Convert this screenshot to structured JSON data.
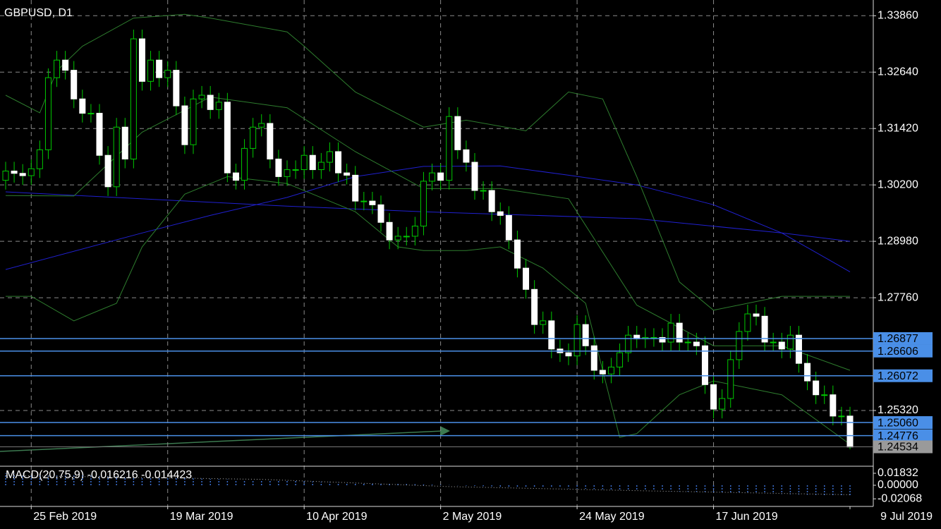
{
  "chart_data": {
    "type": "candlestick",
    "title": "GBPUSD, D1",
    "categories": [
      null,
      null,
      null,
      "25 Feb 2019",
      null,
      null,
      null,
      null,
      null,
      null,
      null,
      null,
      null,
      null,
      null,
      null,
      null,
      null,
      null,
      "19 Mar 2019",
      null,
      null,
      null,
      null,
      null,
      null,
      null,
      null,
      null,
      null,
      null,
      null,
      null,
      null,
      null,
      "10 Apr 2019",
      null,
      null,
      null,
      null,
      null,
      null,
      null,
      null,
      null,
      null,
      null,
      null,
      null,
      null,
      null,
      "2 May 2019",
      null,
      null,
      null,
      null,
      null,
      null,
      null,
      null,
      null,
      null,
      null,
      null,
      null,
      null,
      null,
      "24 May 2019",
      null,
      null,
      null,
      null,
      null,
      null,
      null,
      null,
      null,
      null,
      null,
      null,
      null,
      null,
      null,
      "17 Jun 2019",
      null,
      null,
      null,
      null,
      null,
      null,
      null,
      null,
      null,
      null,
      null,
      null,
      null,
      null,
      null,
      "9 Jul 2019"
    ],
    "open": [
      1.303,
      1.305,
      1.3045,
      1.304,
      1.3055,
      1.3096,
      1.3252,
      1.329,
      1.3268,
      1.3206,
      1.3175,
      1.3175,
      1.3084,
      1.3016,
      1.3145,
      1.3076,
      1.3336,
      1.3244,
      1.329,
      1.3252,
      1.3268,
      1.3191,
      1.3107,
      1.3206,
      1.3214,
      1.3183,
      1.3199,
      1.3046,
      1.303,
      1.3099,
      1.3145,
      1.3153,
      1.3076,
      1.3038,
      1.3053,
      1.3053,
      1.3084,
      1.3053,
      1.3069,
      1.3092,
      1.3046,
      1.3041,
      1.2985,
      1.2985,
      1.2977,
      1.2939,
      1.2901,
      1.2909,
      1.2909,
      1.2931,
      1.3028,
      1.3046,
      1.303,
      1.3168,
      1.3096,
      1.3069,
      1.3008,
      1.3008,
      1.2962,
      1.2954,
      1.2901,
      1.284,
      1.2794,
      1.2718,
      1.2726,
      1.2665,
      1.2657,
      1.265,
      1.2718,
      1.2672,
      1.2619,
      1.2611,
      1.2626,
      1.2657,
      1.2695,
      1.2687,
      1.269,
      1.269,
      1.268,
      1.2721,
      1.268,
      1.268,
      1.2672,
      1.2588,
      1.2535,
      1.2558,
      1.2642,
      1.2703,
      1.2741,
      1.2736,
      1.268,
      1.268,
      1.2665,
      1.2695,
      1.2634,
      1.2596,
      1.2566,
      1.2566,
      1.252,
      1.252
    ],
    "high": [
      1.307,
      1.307,
      1.3065,
      1.3075,
      1.3116,
      1.3272,
      1.331,
      1.331,
      1.3288,
      1.3226,
      1.3195,
      1.3195,
      1.3104,
      1.3165,
      1.3165,
      1.3356,
      1.3356,
      1.331,
      1.331,
      1.3288,
      1.3288,
      1.3211,
      1.3226,
      1.3234,
      1.3234,
      1.3219,
      1.3219,
      1.3066,
      1.3119,
      1.3165,
      1.3173,
      1.3173,
      1.3096,
      1.3073,
      1.3073,
      1.3104,
      1.3104,
      1.3089,
      1.3112,
      1.3112,
      1.3066,
      1.3061,
      1.3005,
      1.3005,
      1.2997,
      1.2959,
      1.2929,
      1.2929,
      1.2951,
      1.3048,
      1.3066,
      1.3066,
      1.3188,
      1.3188,
      1.3116,
      1.3089,
      1.3028,
      1.3028,
      1.2982,
      1.2974,
      1.2921,
      1.286,
      1.2814,
      1.2746,
      1.2746,
      1.2685,
      1.2677,
      1.2738,
      1.2738,
      1.2692,
      1.2639,
      1.2646,
      1.2677,
      1.2715,
      1.2715,
      1.271,
      1.271,
      1.271,
      1.2741,
      1.2741,
      1.27,
      1.27,
      1.2692,
      1.2608,
      1.2578,
      1.2662,
      1.2723,
      1.2761,
      1.2761,
      1.2756,
      1.27,
      1.27,
      1.2715,
      1.2715,
      1.2654,
      1.2616,
      1.2586,
      1.2586,
      1.254,
      1.254
    ],
    "low": [
      1.301,
      1.3025,
      1.302,
      1.302,
      1.3035,
      1.3076,
      1.3232,
      1.3248,
      1.3186,
      1.3155,
      1.3155,
      1.3064,
      1.2996,
      1.2996,
      1.3056,
      1.3056,
      1.3224,
      1.3224,
      1.3232,
      1.3232,
      1.3171,
      1.3087,
      1.3087,
      1.3186,
      1.3163,
      1.3163,
      1.3026,
      1.301,
      1.301,
      1.3079,
      1.3125,
      1.3056,
      1.3018,
      1.3018,
      1.3033,
      1.3033,
      1.3033,
      1.3033,
      1.3049,
      1.3026,
      1.3021,
      1.2965,
      1.2965,
      1.2957,
      1.2919,
      1.2881,
      1.2881,
      1.2889,
      1.2889,
      1.2911,
      1.3008,
      1.301,
      1.301,
      1.3076,
      1.3049,
      1.2988,
      1.2988,
      1.2942,
      1.2934,
      1.2881,
      1.282,
      1.2774,
      1.2698,
      1.2698,
      1.2645,
      1.2637,
      1.263,
      1.263,
      1.2652,
      1.2599,
      1.2591,
      1.2591,
      1.2606,
      1.2637,
      1.2667,
      1.2667,
      1.267,
      1.266,
      1.266,
      1.266,
      1.266,
      1.2652,
      1.2568,
      1.2515,
      1.2515,
      1.2538,
      1.2622,
      1.2683,
      1.2716,
      1.266,
      1.266,
      1.2645,
      1.2645,
      1.2614,
      1.2576,
      1.2546,
      1.2546,
      1.25,
      1.25,
      1.2448
    ],
    "close": [
      1.305,
      1.3045,
      1.304,
      1.3055,
      1.3096,
      1.3252,
      1.329,
      1.3268,
      1.3206,
      1.3175,
      1.3175,
      1.3084,
      1.3016,
      1.3145,
      1.3076,
      1.3336,
      1.3244,
      1.329,
      1.3252,
      1.3268,
      1.3191,
      1.3107,
      1.3206,
      1.3214,
      1.3183,
      1.3199,
      1.3046,
      1.303,
      1.3099,
      1.3145,
      1.3153,
      1.3076,
      1.3038,
      1.3053,
      1.3053,
      1.3084,
      1.3053,
      1.3069,
      1.3092,
      1.3046,
      1.3041,
      1.2985,
      1.2985,
      1.2977,
      1.2939,
      1.2901,
      1.2909,
      1.2909,
      1.2931,
      1.3028,
      1.3046,
      1.303,
      1.3168,
      1.3096,
      1.3069,
      1.3008,
      1.3008,
      1.2962,
      1.2954,
      1.2901,
      1.284,
      1.2794,
      1.2718,
      1.2726,
      1.2665,
      1.2657,
      1.265,
      1.2718,
      1.2672,
      1.2619,
      1.2611,
      1.2626,
      1.2657,
      1.2695,
      1.2687,
      1.269,
      1.269,
      1.268,
      1.2721,
      1.268,
      1.268,
      1.2672,
      1.2588,
      1.2535,
      1.2558,
      1.2642,
      1.2703,
      1.2741,
      1.2736,
      1.268,
      1.268,
      1.2665,
      1.2695,
      1.2634,
      1.2596,
      1.2566,
      1.2566,
      1.252,
      1.252,
      1.2453
    ],
    "up_color": "#00c800",
    "down_color": "#ffffff",
    "ylim": [
      1.2413,
      1.342
    ],
    "yticks": [
      {
        "value": 1.2532,
        "label": "1.25320"
      },
      {
        "value": 1.2776,
        "label": "1.27760"
      },
      {
        "value": 1.2898,
        "label": "1.28980"
      },
      {
        "value": 1.302,
        "label": "1.30200"
      },
      {
        "value": 1.3142,
        "label": "1.31420"
      },
      {
        "value": 1.3264,
        "label": "1.32640"
      },
      {
        "value": 1.3386,
        "label": "1.33860"
      }
    ],
    "grid": true,
    "overlays": [
      {
        "color": "#2020d0",
        "x": [
          0,
          33,
          49,
          74,
          91,
          99
        ],
        "values": [
          1.3005,
          1.2974,
          1.2962,
          1.2947,
          1.2916,
          1.2898
        ]
      },
      {
        "color": "#2020d0",
        "x": [
          0,
          16,
          24,
          33,
          41,
          49,
          58,
          66,
          74,
          83,
          91,
          99
        ],
        "values": [
          1.2837,
          1.2916,
          1.2954,
          1.2993,
          1.3038,
          1.306,
          1.3061,
          1.3041,
          1.302,
          1.2977,
          1.2916,
          1.2832
        ]
      },
      {
        "color": "#2e7d2e",
        "x": [
          0,
          4,
          6,
          9,
          15,
          21,
          24,
          33,
          35,
          41,
          49,
          54,
          61,
          66,
          70,
          74,
          79,
          83,
          91,
          99
        ],
        "values": [
          1.3214,
          1.3176,
          1.3267,
          1.332,
          1.3381,
          1.3389,
          1.3381,
          1.3351,
          1.332,
          1.3221,
          1.3145,
          1.316,
          1.3137,
          1.3221,
          1.3206,
          1.3038,
          1.281,
          1.2749,
          1.2779,
          1.2779
        ]
      },
      {
        "color": "#2e7d2e",
        "x": [
          0,
          8,
          16,
          24,
          33,
          41,
          49,
          58,
          66,
          74,
          83,
          91,
          99
        ],
        "values": [
          1.2997,
          1.2996,
          1.3134,
          1.321,
          1.3187,
          1.3092,
          1.3012,
          1.3012,
          1.299,
          1.276,
          1.2672,
          1.2672,
          1.2619
        ]
      },
      {
        "color": "#2e7d2e",
        "x": [
          0,
          3,
          8,
          13,
          16,
          21,
          26,
          33,
          41,
          46,
          49,
          54,
          58,
          63,
          68,
          72,
          74,
          79,
          83,
          91,
          99
        ],
        "values": [
          1.2779,
          1.2779,
          1.2726,
          1.2764,
          1.2886,
          1.3,
          1.3038,
          1.3023,
          1.2962,
          1.2886,
          1.2878,
          1.2878,
          1.2886,
          1.284,
          1.2764,
          1.2474,
          1.2482,
          1.2566,
          1.2596,
          1.2566,
          1.2459
        ]
      }
    ],
    "hlines": [
      1.26877,
      1.26606,
      1.26072,
      {
        "value": 1.2506,
        "label": "1.25060"
      },
      1.24776
    ],
    "hline_color": "#4a8fe7",
    "bid": 1.24534,
    "macd": {
      "label": "MACD(20,75,9)",
      "main": -0.016216,
      "signal": -0.014423,
      "color": "#3b6fd0",
      "ylim": [
        -0.0323,
        0.028
      ],
      "yticks": [
        -0.02068,
        {
          "value": 0,
          "label": "0.00000"
        },
        0.01832
      ],
      "histogram": [
        0.018,
        0.0177,
        0.0173,
        0.017,
        0.0166,
        0.0163,
        0.016,
        0.0156,
        0.0153,
        0.0149,
        0.0146,
        0.0143,
        0.0139,
        0.0136,
        0.0132,
        0.0129,
        0.0126,
        0.0122,
        0.0119,
        0.0115,
        0.0112,
        0.0109,
        0.0105,
        0.0102,
        0.0098,
        0.0095,
        0.0092,
        0.0088,
        0.0085,
        0.0081,
        0.0078,
        0.0075,
        0.0071,
        0.0068,
        0.0064,
        0.0061,
        0.0058,
        0.0054,
        0.0051,
        0.0047,
        0.0044,
        0.0041,
        0.0037,
        0.0034,
        0.003,
        0.0027,
        0.0024,
        0.002,
        0.0017,
        0.0013,
        0.001,
        0.0007,
        0.0003,
        -0.0003,
        -0.0007,
        -0.001,
        -0.0014,
        -0.0017,
        -0.0021,
        -0.0024,
        -0.0028,
        -0.0031,
        -0.0035,
        -0.0038,
        -0.0041,
        -0.0045,
        -0.0048,
        -0.0052,
        -0.0055,
        -0.0059,
        -0.0062,
        -0.0066,
        -0.0069,
        -0.0072,
        -0.0076,
        -0.0079,
        -0.0083,
        -0.0086,
        -0.009,
        -0.0093,
        -0.0097,
        -0.01,
        -0.0103,
        -0.0107,
        -0.011,
        -0.0114,
        -0.0117,
        -0.0121,
        -0.0124,
        -0.0128,
        -0.0131,
        -0.0134,
        -0.0138,
        -0.0141,
        -0.0145,
        -0.0148,
        -0.0152,
        -0.0155,
        -0.0159,
        -0.0162
      ],
      "signal_line": {
        "x": [
          0,
          30,
          52,
          75,
          99
        ],
        "values": [
          0.015,
          0.009,
          -0.002,
          -0.0085,
          -0.014423
        ]
      }
    }
  }
}
